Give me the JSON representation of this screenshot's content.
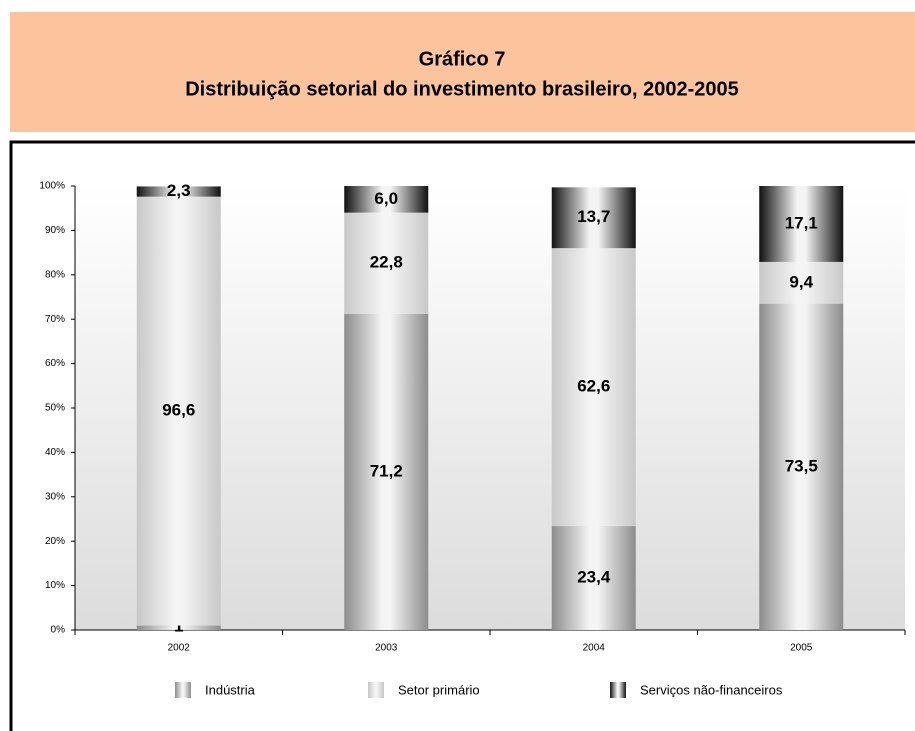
{
  "chart_data": {
    "type": "stacked_bar",
    "title": "Gráfico 7",
    "subtitle": "Distribuição setorial do investimento brasileiro, 2002-2005",
    "categories": [
      "2002",
      "2003",
      "2004",
      "2005"
    ],
    "series": [
      {
        "name": "Indústria",
        "color": "#8c8c8c",
        "values": [
          1,
          71.2,
          23.4,
          73.5
        ],
        "value_labels": [
          "1",
          "71,2",
          "23,4",
          "73,5"
        ]
      },
      {
        "name": "Setor primário",
        "color": "#c8c8c8",
        "values": [
          96.6,
          22.8,
          62.6,
          9.4
        ],
        "value_labels": [
          "96,6",
          "22,8",
          "62,6",
          "9,4"
        ]
      },
      {
        "name": "Serviços não-financeiros",
        "color": "#111111",
        "values": [
          2.3,
          6.0,
          13.7,
          17.1
        ],
        "value_labels": [
          "2,3",
          "6,0",
          "13,7",
          "17,1"
        ]
      }
    ],
    "ylim": [
      0,
      100
    ],
    "yticks": [
      {
        "value": 0,
        "label": "0%"
      },
      {
        "value": 10,
        "label": "10%"
      },
      {
        "value": 20,
        "label": "20%"
      },
      {
        "value": 30,
        "label": "30%"
      },
      {
        "value": 40,
        "label": "40%"
      },
      {
        "value": 50,
        "label": "50%"
      },
      {
        "value": 60,
        "label": "60%"
      },
      {
        "value": 70,
        "label": "70%"
      },
      {
        "value": 80,
        "label": "80%"
      },
      {
        "value": 90,
        "label": "90%"
      },
      {
        "value": 100,
        "label": "100%"
      }
    ],
    "legend": "bottom"
  }
}
